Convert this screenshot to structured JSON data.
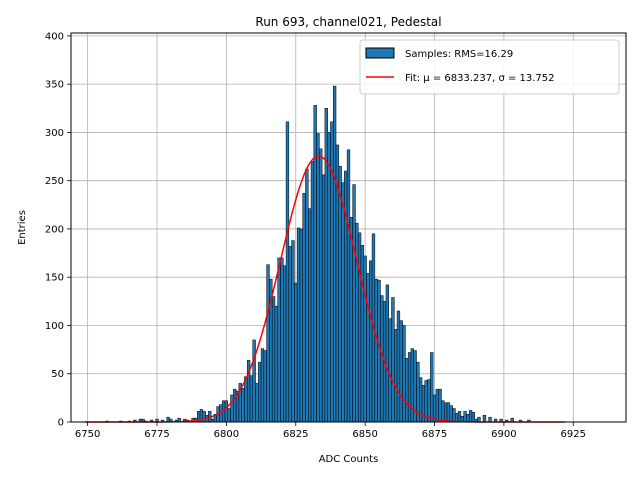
{
  "chart_data": {
    "type": "bar",
    "title": "Run 693, channel021, Pedestal",
    "xlabel": "ADC Counts",
    "ylabel": "Entries",
    "xlim": [
      6744,
      6944
    ],
    "ylim": [
      0,
      403
    ],
    "xticks": [
      6750,
      6775,
      6800,
      6825,
      6850,
      6875,
      6900,
      6925
    ],
    "yticks": [
      0,
      50,
      100,
      150,
      200,
      250,
      300,
      350,
      400
    ],
    "grid": true,
    "legend_position": "top-right",
    "colors": {
      "bar": "#1f77b4",
      "bar_edge": "#000000",
      "fit": "#ff0000",
      "grid": "#b0b0b0"
    },
    "legend": [
      {
        "label": "Samples: RMS=16.29",
        "kind": "patch"
      },
      {
        "label": "Fit: μ = 6833.237, σ = 13.752",
        "kind": "line"
      }
    ],
    "series": [
      {
        "name": "Samples: RMS=16.29",
        "kind": "histogram",
        "bin_width": 1,
        "x": [
          6757,
          6762,
          6765,
          6767,
          6769,
          6770,
          6771,
          6773,
          6775,
          6777,
          6779,
          6780,
          6782,
          6783,
          6785,
          6786,
          6788,
          6789,
          6790,
          6791,
          6792,
          6793,
          6794,
          6795,
          6796,
          6797,
          6798,
          6799,
          6800,
          6801,
          6802,
          6803,
          6804,
          6805,
          6806,
          6807,
          6808,
          6809,
          6810,
          6811,
          6812,
          6813,
          6814,
          6815,
          6816,
          6817,
          6818,
          6819,
          6820,
          6821,
          6822,
          6823,
          6824,
          6825,
          6826,
          6827,
          6828,
          6829,
          6830,
          6831,
          6832,
          6833,
          6834,
          6835,
          6836,
          6837,
          6838,
          6839,
          6840,
          6841,
          6842,
          6843,
          6844,
          6845,
          6846,
          6847,
          6848,
          6849,
          6850,
          6851,
          6852,
          6853,
          6854,
          6855,
          6856,
          6857,
          6858,
          6859,
          6860,
          6861,
          6862,
          6863,
          6864,
          6865,
          6866,
          6867,
          6868,
          6869,
          6870,
          6871,
          6872,
          6873,
          6874,
          6875,
          6876,
          6877,
          6878,
          6879,
          6880,
          6881,
          6882,
          6883,
          6884,
          6885,
          6886,
          6887,
          6888,
          6889,
          6890,
          6891,
          6893,
          6895,
          6897,
          6899,
          6901,
          6903,
          6906,
          6909
        ],
        "values": [
          1,
          1,
          1,
          2,
          3,
          3,
          1,
          2,
          3,
          2,
          5,
          3,
          2,
          4,
          3,
          2,
          4,
          4,
          11,
          13,
          11,
          7,
          11,
          3,
          8,
          16,
          18,
          22,
          22,
          14,
          28,
          34,
          32,
          40,
          35,
          47,
          64,
          48,
          85,
          40,
          62,
          76,
          74,
          163,
          148,
          130,
          120,
          170,
          170,
          162,
          311,
          182,
          188,
          144,
          201,
          200,
          237,
          262,
          221,
          270,
          328,
          299,
          283,
          256,
          325,
          300,
          311,
          348,
          287,
          265,
          248,
          260,
          282,
          212,
          246,
          206,
          196,
          183,
          172,
          154,
          167,
          195,
          148,
          147,
          131,
          125,
          142,
          107,
          129,
          96,
          115,
          105,
          100,
          66,
          72,
          76,
          74,
          62,
          46,
          38,
          43,
          44,
          72,
          28,
          34,
          34,
          22,
          20,
          20,
          17,
          14,
          9,
          11,
          6,
          11,
          8,
          12,
          10,
          3,
          5,
          7,
          5,
          3,
          3,
          2,
          4,
          2,
          2
        ]
      },
      {
        "name": "Fit: μ = 6833.237, σ = 13.752",
        "kind": "gaussian",
        "mu": 6833.237,
        "sigma": 13.752,
        "amplitude": 275.5,
        "x_range": [
          6749,
          6922
        ]
      }
    ]
  }
}
